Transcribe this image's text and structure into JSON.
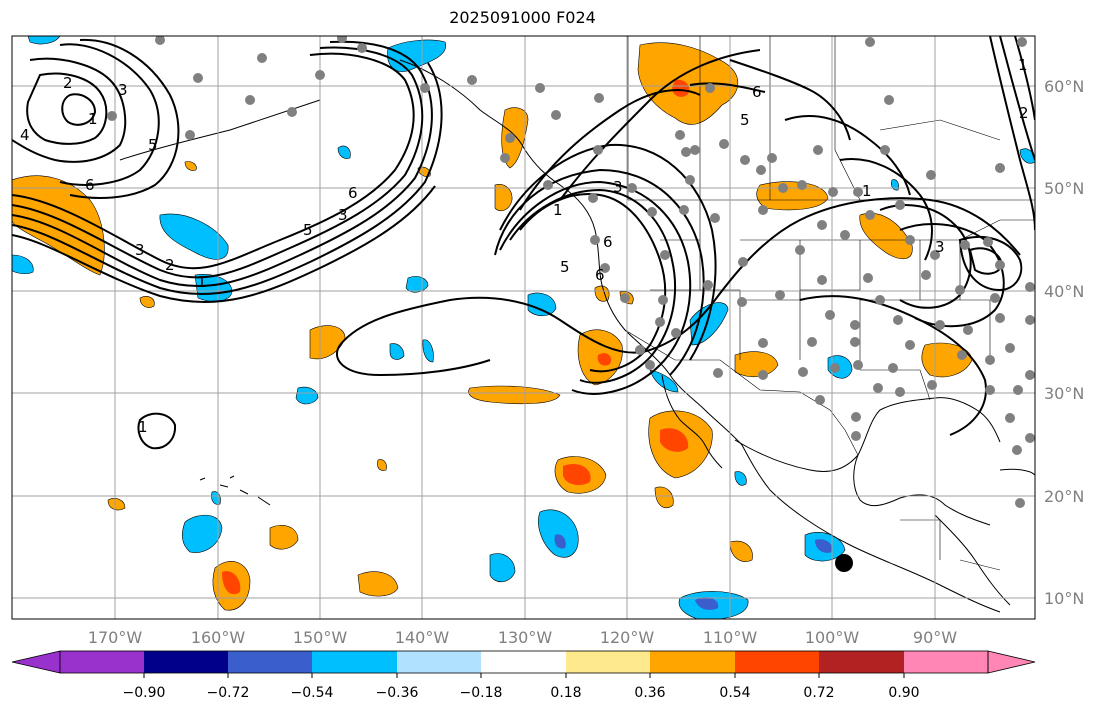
{
  "title": "2025091000 F024",
  "map": {
    "lon_labels": [
      "170°W",
      "160°W",
      "150°W",
      "140°W",
      "130°W",
      "120°W",
      "110°W",
      "100°W",
      "90°W"
    ],
    "lat_labels": [
      "60°N",
      "50°N",
      "40°N",
      "30°N",
      "20°N",
      "10°N"
    ],
    "contour_labels": [
      "2",
      "3",
      "1",
      "5",
      "6",
      "4",
      "3",
      "2",
      "1",
      "1",
      "6",
      "5",
      "3",
      "1",
      "6",
      "5",
      "6",
      "5",
      "3",
      "2",
      "1",
      "1",
      "3"
    ]
  },
  "colorbar": {
    "tick_labels": [
      "−0.90",
      "−0.72",
      "−0.54",
      "−0.36",
      "−0.18",
      "0.18",
      "0.36",
      "0.54",
      "0.72",
      "0.90"
    ],
    "colors": [
      "#9932cc",
      "#00008b",
      "#3a5fcd",
      "#00bfff",
      "#b0e2ff",
      "#ffffff",
      "#fee98c",
      "#ffa500",
      "#ff4500",
      "#b22222",
      "#ff86b5"
    ],
    "bounds": [
      -0.9,
      -0.72,
      -0.54,
      -0.36,
      -0.18,
      0.18,
      0.36,
      0.54,
      0.72,
      0.9
    ]
  },
  "colors": {
    "orange": "#ffa500",
    "red": "#ff4500",
    "lightblue": "#00bfff",
    "blue": "#3a5fcd",
    "station": "#808080",
    "grid": "#a0a0a0"
  }
}
